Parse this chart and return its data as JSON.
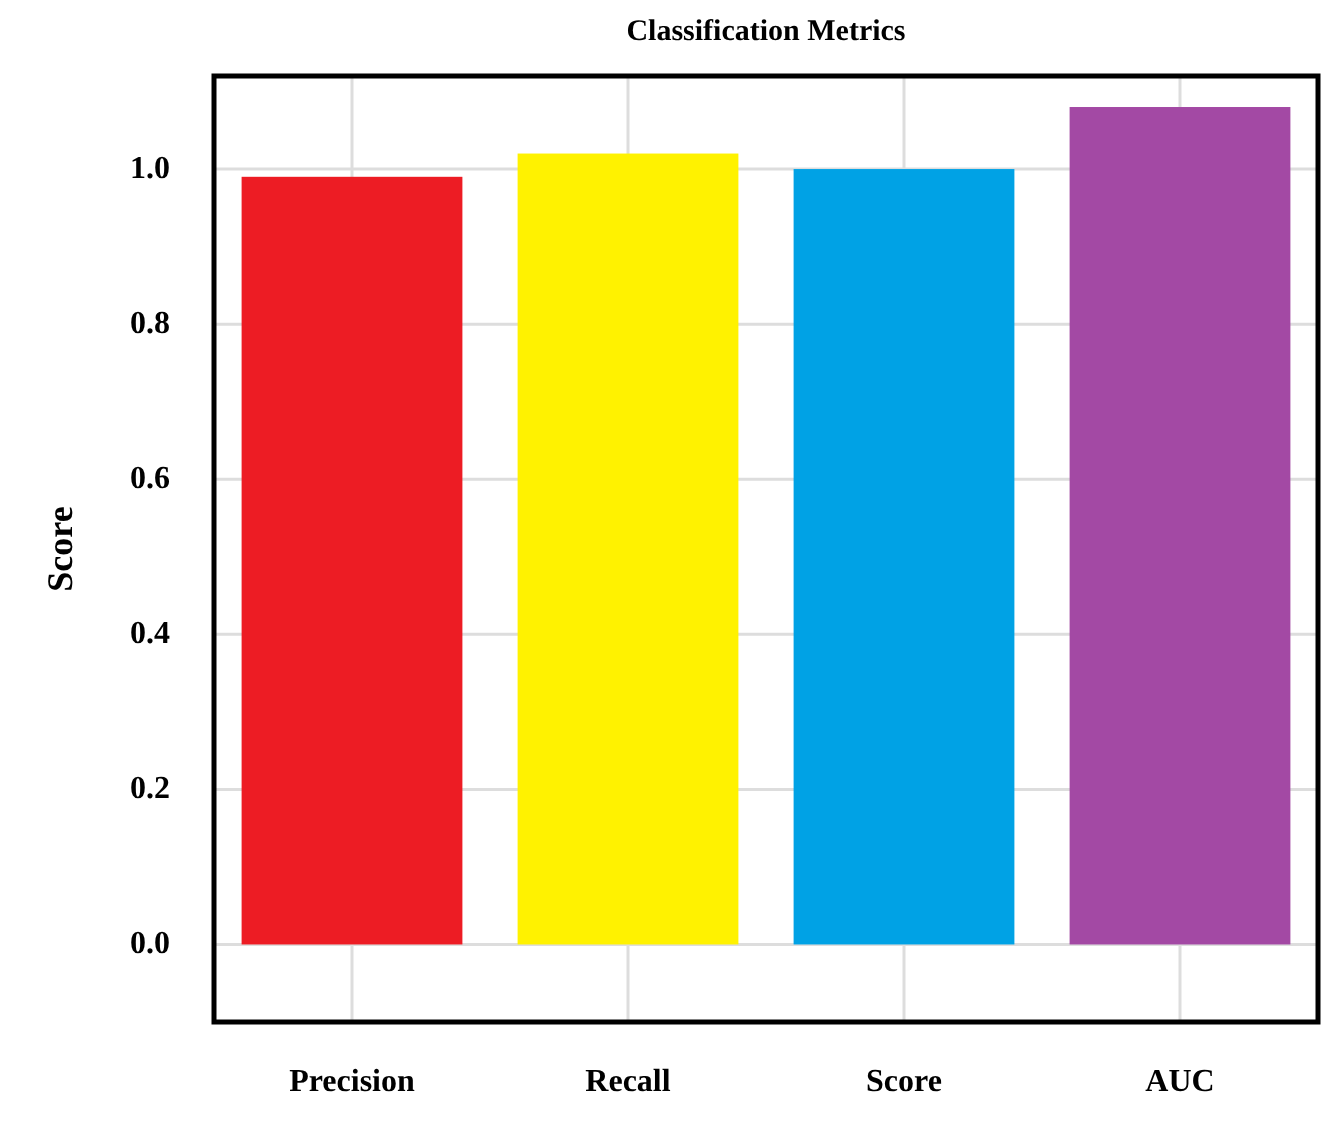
{
  "chart_data": {
    "type": "bar",
    "title": "Classification Metrics",
    "ylabel": "Score",
    "categories": [
      "Precision",
      "Recall",
      "Score",
      "AUC"
    ],
    "values": [
      0.99,
      1.02,
      1.0,
      1.08
    ],
    "colors": [
      "#ed1c24",
      "#fff200",
      "#00a2e5",
      "#a349a4"
    ],
    "ylim": [
      -0.1,
      1.12
    ],
    "yticks": [
      {
        "value": 0,
        "label": "0.0"
      },
      0.2,
      0.4,
      0.6,
      0.8,
      {
        "value": 1,
        "label": "1.0"
      }
    ],
    "grid": true
  }
}
